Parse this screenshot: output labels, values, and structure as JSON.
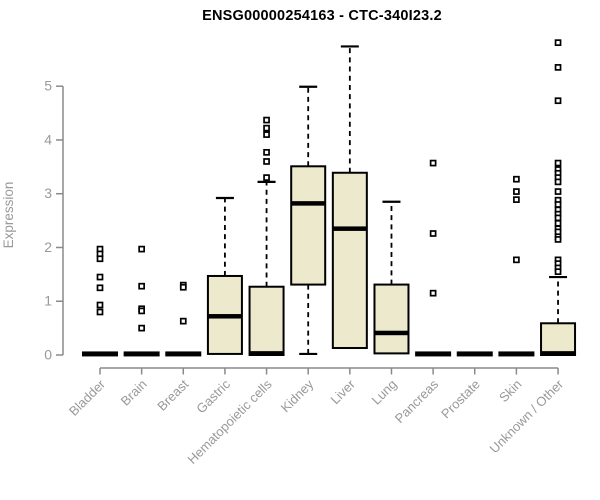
{
  "chart_data": {
    "type": "boxplot",
    "title": "ENSG00000254163 - CTC-340I23.2",
    "ylabel": "Expression",
    "ylim": [
      0,
      5
    ],
    "yticks": [
      0,
      1,
      2,
      3,
      4,
      5
    ],
    "grid": false,
    "legend": "none",
    "categories": [
      "Bladder",
      "Brain",
      "Breast",
      "Gastric",
      "Hematopoietic cells",
      "Kidney",
      "Liver",
      "Lung",
      "Pancreas",
      "Prostate",
      "Skin",
      "Unknown / Other"
    ],
    "series": [
      {
        "name": "Bladder",
        "collapsed": true,
        "median": 0.02,
        "outliers": [
          1.97,
          1.88,
          1.79,
          1.45,
          1.25,
          0.93,
          0.8
        ]
      },
      {
        "name": "Brain",
        "collapsed": true,
        "median": 0.02,
        "outliers": [
          1.97,
          1.28,
          0.86,
          0.82,
          0.5
        ]
      },
      {
        "name": "Breast",
        "collapsed": true,
        "median": 0.02,
        "outliers": [
          1.3,
          1.26,
          0.63
        ]
      },
      {
        "name": "Gastric",
        "collapsed": false,
        "min": 0.02,
        "q1": 0.02,
        "median": 0.72,
        "q3": 1.47,
        "max": 2.92,
        "outliers": []
      },
      {
        "name": "Hematopoietic cells",
        "collapsed": false,
        "min": 0,
        "q1": 0,
        "median": 0.03,
        "q3": 1.27,
        "max": 3.22,
        "outliers": [
          4.37,
          4.22,
          4.1,
          3.77,
          3.6,
          3.3
        ]
      },
      {
        "name": "Kidney",
        "collapsed": false,
        "min": 0.02,
        "q1": 1.31,
        "median": 2.82,
        "q3": 3.51,
        "max": 4.99,
        "outliers": []
      },
      {
        "name": "Liver",
        "collapsed": false,
        "min": 0.13,
        "q1": 0.13,
        "median": 2.35,
        "q3": 3.39,
        "max": 5.74,
        "outliers": []
      },
      {
        "name": "Lung",
        "collapsed": false,
        "min": 0.03,
        "q1": 0.03,
        "median": 0.41,
        "q3": 1.31,
        "max": 2.85,
        "outliers": []
      },
      {
        "name": "Pancreas",
        "collapsed": true,
        "median": 0.02,
        "outliers": [
          3.57,
          2.26,
          1.15
        ]
      },
      {
        "name": "Prostate",
        "collapsed": true,
        "median": 0.02,
        "outliers": []
      },
      {
        "name": "Skin",
        "collapsed": true,
        "median": 0.02,
        "outliers": [
          3.27,
          3.04,
          2.89,
          1.77
        ]
      },
      {
        "name": "Unknown / Other",
        "collapsed": false,
        "min": 0,
        "q1": 0,
        "median": 0.03,
        "q3": 0.59,
        "max": 1.45,
        "outliers": [
          5.81,
          5.35,
          4.73,
          3.57,
          3.45,
          3.38,
          3.3,
          3.22,
          3.04,
          2.88,
          2.8,
          2.7,
          2.62,
          2.55,
          2.45,
          2.35,
          2.29,
          2.2,
          2.15,
          1.77,
          1.7,
          1.62,
          1.55
        ]
      }
    ],
    "colors": {
      "box_fill": "#EDE9CC",
      "box_stroke": "#000000",
      "median": "#000000",
      "axis": "#8A8A8A",
      "tick_text": "#999999",
      "title_text": "#000000"
    }
  }
}
